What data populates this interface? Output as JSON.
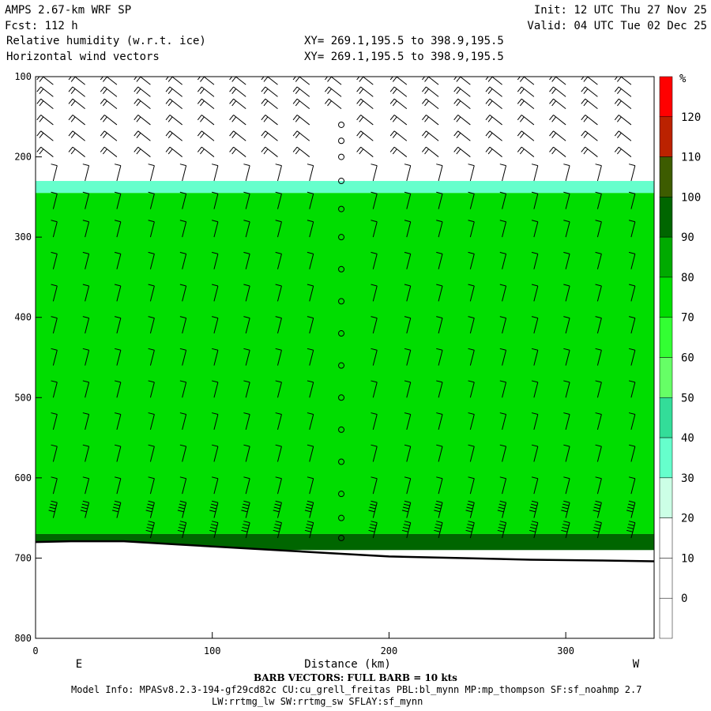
{
  "header": {
    "left_line1": "AMPS 2.67-km WRF SP",
    "left_line2": "Fcst:  112 h",
    "left_line3": "Relative humidity (w.r.t. ice)",
    "left_line4": "Horizontal wind vectors",
    "mid_line3": "XY= 269.1,195.5 to 398.9,195.5",
    "mid_line4": "XY= 269.1,195.5 to 398.9,195.5",
    "right_line1": "Init: 12 UTC Thu 27 Nov 25",
    "right_line2": "Valid: 04 UTC Tue 02 Dec 25"
  },
  "footer": {
    "barb_note": "BARB VECTORS:  FULL BARB = 10 kts",
    "model_info": "Model Info: MPASv8.2.3-194-gf29cd82c CU:cu_grell_freitas PBL:bl_mynn MP:mp_thompson SF:sf_noahmp 2.7",
    "model_info2": "LW:rrtmg_lw SW:rrtmg_sw SFLAY:sf_mynn"
  },
  "colors": {
    "terrain_fill": "#ff0000",
    "terrain_line": "#000000"
  },
  "chart_data": {
    "type": "heatmap",
    "title": "Relative humidity (w.r.t. ice)",
    "xlabel": "Distance (km)",
    "ylabel": "",
    "xlim": [
      0,
      350
    ],
    "ylim": [
      800,
      100
    ],
    "x_ticks": [
      0,
      100,
      200,
      300
    ],
    "y_ticks": [
      100,
      200,
      300,
      400,
      500,
      600,
      700,
      800
    ],
    "x_end_labels": {
      "left": "E",
      "right": "W"
    },
    "colorbar": {
      "unit": "%",
      "levels": [
        0,
        10,
        20,
        30,
        40,
        50,
        60,
        70,
        80,
        90,
        100,
        110,
        120
      ],
      "colors": [
        "#ffffff",
        "#ffffff",
        "#ffffff",
        "#ccffe6",
        "#66ffcc",
        "#33dd99",
        "#66ff66",
        "#33ff33",
        "#00dd00",
        "#00aa00",
        "#006600",
        "#3d5c00",
        "#bb2200",
        "#ff0000"
      ]
    },
    "rh_bands": [
      {
        "name": "dry_upper",
        "p_top": 100,
        "p_bottom": 230,
        "rh": 5
      },
      {
        "name": "moist_upper_edge",
        "p_top": 230,
        "p_bottom": 245,
        "rh": 35
      },
      {
        "name": "main_layer",
        "p_top": 245,
        "p_bottom": 670,
        "rh": 70
      },
      {
        "name": "near_surface_moist",
        "p_top": 670,
        "p_bottom": 690,
        "rh": 95
      }
    ],
    "surface_pressure": [
      {
        "x": 0,
        "p": 680
      },
      {
        "x": 20,
        "p": 679
      },
      {
        "x": 50,
        "p": 679
      },
      {
        "x": 80,
        "p": 683
      },
      {
        "x": 120,
        "p": 688
      },
      {
        "x": 160,
        "p": 693
      },
      {
        "x": 200,
        "p": 698
      },
      {
        "x": 240,
        "p": 700
      },
      {
        "x": 280,
        "p": 702
      },
      {
        "x": 320,
        "p": 703
      },
      {
        "x": 350,
        "p": 704
      }
    ],
    "barb_columns_x": [
      10,
      28,
      46,
      65,
      83,
      101,
      119,
      137,
      155,
      173,
      191,
      210,
      228,
      246,
      264,
      282,
      300,
      318,
      337
    ],
    "calm_column_x": 173,
    "barb_levels_p": [
      110,
      125,
      140,
      160,
      180,
      200,
      230,
      265,
      300,
      340,
      380,
      420,
      460,
      500,
      540,
      580,
      620,
      650,
      675
    ]
  }
}
